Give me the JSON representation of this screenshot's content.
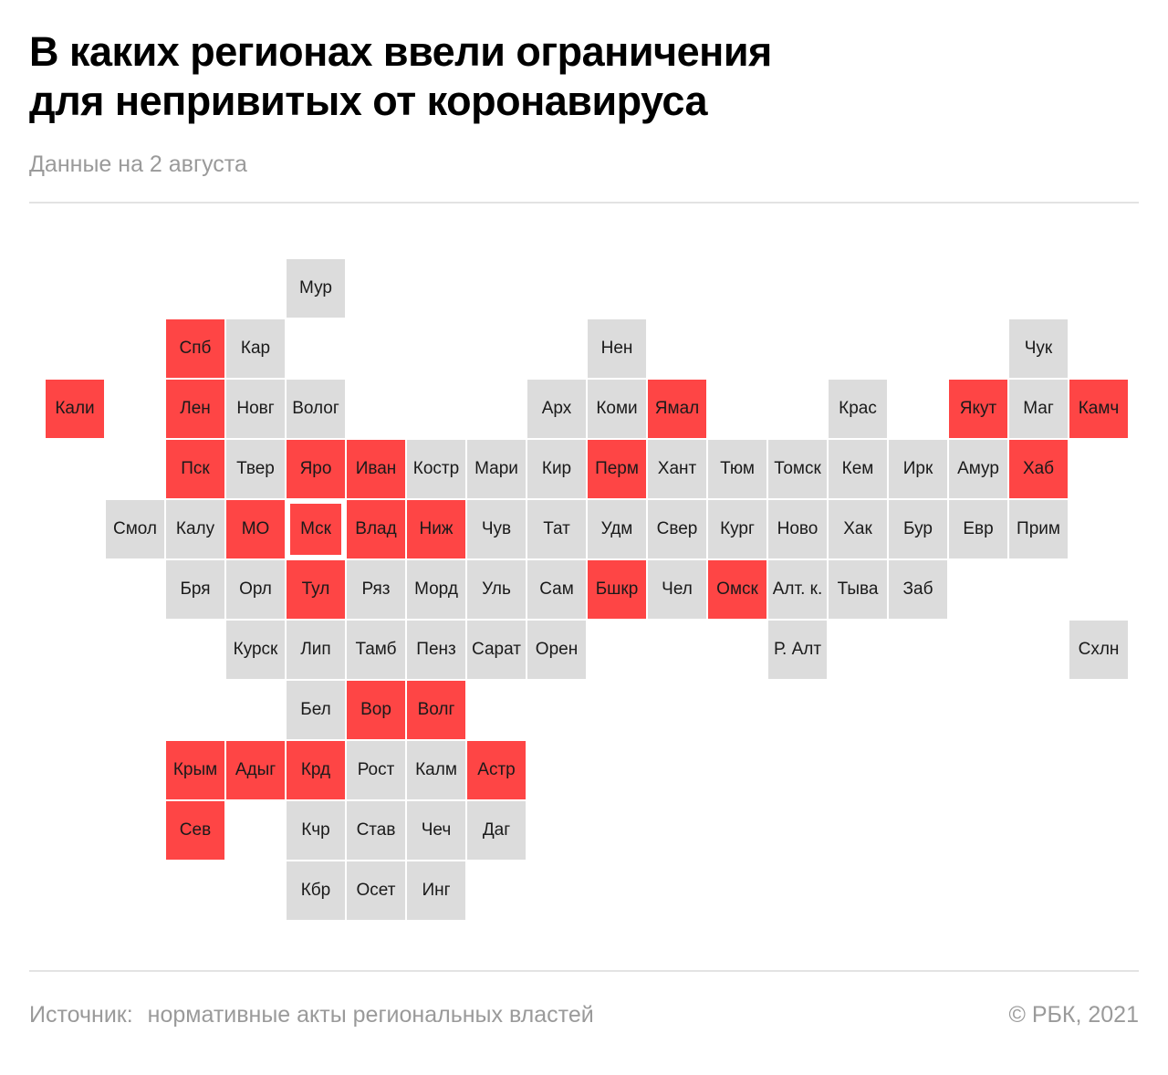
{
  "header": {
    "title_line1": "В каких регионах ввели ограничения",
    "title_line2": "для непривитых от коронавируса",
    "subtitle": "Данные на 2 августа"
  },
  "footer": {
    "source_label": "Источник:",
    "source_text": "нормативные акты региональных властей",
    "copyright": "©  РБК, 2021"
  },
  "colors": {
    "restricted": "#fe4545",
    "not_restricted": "#dcdcdc"
  },
  "chart_data": {
    "type": "heatmap",
    "cells": [
      {
        "label": "Мур",
        "col": 4,
        "row": 0,
        "restricted": false
      },
      {
        "label": "Спб",
        "col": 2,
        "row": 1,
        "restricted": true
      },
      {
        "label": "Кар",
        "col": 3,
        "row": 1,
        "restricted": false
      },
      {
        "label": "Нен",
        "col": 9,
        "row": 1,
        "restricted": false
      },
      {
        "label": "Чук",
        "col": 16,
        "row": 1,
        "restricted": false
      },
      {
        "label": "Кали",
        "col": 0,
        "row": 2,
        "restricted": true
      },
      {
        "label": "Лен",
        "col": 2,
        "row": 2,
        "restricted": true
      },
      {
        "label": "Новг",
        "col": 3,
        "row": 2,
        "restricted": false
      },
      {
        "label": "Волог",
        "col": 4,
        "row": 2,
        "restricted": false
      },
      {
        "label": "Арх",
        "col": 8,
        "row": 2,
        "restricted": false
      },
      {
        "label": "Коми",
        "col": 9,
        "row": 2,
        "restricted": false
      },
      {
        "label": "Ямал",
        "col": 10,
        "row": 2,
        "restricted": true
      },
      {
        "label": "Крас",
        "col": 13,
        "row": 2,
        "restricted": false
      },
      {
        "label": "Якут",
        "col": 15,
        "row": 2,
        "restricted": true
      },
      {
        "label": "Маг",
        "col": 16,
        "row": 2,
        "restricted": false
      },
      {
        "label": "Камч",
        "col": 17,
        "row": 2,
        "restricted": true
      },
      {
        "label": "Пск",
        "col": 2,
        "row": 3,
        "restricted": true
      },
      {
        "label": "Твер",
        "col": 3,
        "row": 3,
        "restricted": false
      },
      {
        "label": "Яро",
        "col": 4,
        "row": 3,
        "restricted": true
      },
      {
        "label": "Иван",
        "col": 5,
        "row": 3,
        "restricted": true
      },
      {
        "label": "Костр",
        "col": 6,
        "row": 3,
        "restricted": false
      },
      {
        "label": "Мари",
        "col": 7,
        "row": 3,
        "restricted": false
      },
      {
        "label": "Кир",
        "col": 8,
        "row": 3,
        "restricted": false
      },
      {
        "label": "Перм",
        "col": 9,
        "row": 3,
        "restricted": true
      },
      {
        "label": "Хант",
        "col": 10,
        "row": 3,
        "restricted": false
      },
      {
        "label": "Тюм",
        "col": 11,
        "row": 3,
        "restricted": false
      },
      {
        "label": "Томск",
        "col": 12,
        "row": 3,
        "restricted": false
      },
      {
        "label": "Кем",
        "col": 13,
        "row": 3,
        "restricted": false
      },
      {
        "label": "Ирк",
        "col": 14,
        "row": 3,
        "restricted": false
      },
      {
        "label": "Амур",
        "col": 15,
        "row": 3,
        "restricted": false
      },
      {
        "label": "Хаб",
        "col": 16,
        "row": 3,
        "restricted": true
      },
      {
        "label": "Смол",
        "col": 1,
        "row": 4,
        "restricted": false
      },
      {
        "label": "Калу",
        "col": 2,
        "row": 4,
        "restricted": false
      },
      {
        "label": "МО",
        "col": 3,
        "row": 4,
        "restricted": true
      },
      {
        "label": "Мск",
        "col": 4,
        "row": 4,
        "restricted": true,
        "highlight": true
      },
      {
        "label": "Влад",
        "col": 5,
        "row": 4,
        "restricted": true
      },
      {
        "label": "Ниж",
        "col": 6,
        "row": 4,
        "restricted": true
      },
      {
        "label": "Чув",
        "col": 7,
        "row": 4,
        "restricted": false
      },
      {
        "label": "Тат",
        "col": 8,
        "row": 4,
        "restricted": false
      },
      {
        "label": "Удм",
        "col": 9,
        "row": 4,
        "restricted": false
      },
      {
        "label": "Свер",
        "col": 10,
        "row": 4,
        "restricted": false
      },
      {
        "label": "Кург",
        "col": 11,
        "row": 4,
        "restricted": false
      },
      {
        "label": "Ново",
        "col": 12,
        "row": 4,
        "restricted": false
      },
      {
        "label": "Хак",
        "col": 13,
        "row": 4,
        "restricted": false
      },
      {
        "label": "Бур",
        "col": 14,
        "row": 4,
        "restricted": false
      },
      {
        "label": "Евр",
        "col": 15,
        "row": 4,
        "restricted": false
      },
      {
        "label": "Прим",
        "col": 16,
        "row": 4,
        "restricted": false
      },
      {
        "label": "Бря",
        "col": 2,
        "row": 5,
        "restricted": false
      },
      {
        "label": "Орл",
        "col": 3,
        "row": 5,
        "restricted": false
      },
      {
        "label": "Тул",
        "col": 4,
        "row": 5,
        "restricted": true
      },
      {
        "label": "Ряз",
        "col": 5,
        "row": 5,
        "restricted": false
      },
      {
        "label": "Морд",
        "col": 6,
        "row": 5,
        "restricted": false
      },
      {
        "label": "Уль",
        "col": 7,
        "row": 5,
        "restricted": false
      },
      {
        "label": "Сам",
        "col": 8,
        "row": 5,
        "restricted": false
      },
      {
        "label": "Бшкр",
        "col": 9,
        "row": 5,
        "restricted": true
      },
      {
        "label": "Чел",
        "col": 10,
        "row": 5,
        "restricted": false
      },
      {
        "label": "Омск",
        "col": 11,
        "row": 5,
        "restricted": true
      },
      {
        "label": "Алт. к.",
        "col": 12,
        "row": 5,
        "restricted": false
      },
      {
        "label": "Тыва",
        "col": 13,
        "row": 5,
        "restricted": false
      },
      {
        "label": "Заб",
        "col": 14,
        "row": 5,
        "restricted": false
      },
      {
        "label": "Курск",
        "col": 3,
        "row": 6,
        "restricted": false
      },
      {
        "label": "Лип",
        "col": 4,
        "row": 6,
        "restricted": false
      },
      {
        "label": "Тамб",
        "col": 5,
        "row": 6,
        "restricted": false
      },
      {
        "label": "Пенз",
        "col": 6,
        "row": 6,
        "restricted": false
      },
      {
        "label": "Сарат",
        "col": 7,
        "row": 6,
        "restricted": false
      },
      {
        "label": "Орен",
        "col": 8,
        "row": 6,
        "restricted": false
      },
      {
        "label": "Р. Алт",
        "col": 12,
        "row": 6,
        "restricted": false
      },
      {
        "label": "Схлн",
        "col": 17,
        "row": 6,
        "restricted": false
      },
      {
        "label": "Бел",
        "col": 4,
        "row": 7,
        "restricted": false
      },
      {
        "label": "Вор",
        "col": 5,
        "row": 7,
        "restricted": true
      },
      {
        "label": "Волг",
        "col": 6,
        "row": 7,
        "restricted": true
      },
      {
        "label": "Крым",
        "col": 2,
        "row": 8,
        "restricted": true
      },
      {
        "label": "Адыг",
        "col": 3,
        "row": 8,
        "restricted": true
      },
      {
        "label": "Крд",
        "col": 4,
        "row": 8,
        "restricted": true
      },
      {
        "label": "Рост",
        "col": 5,
        "row": 8,
        "restricted": false
      },
      {
        "label": "Калм",
        "col": 6,
        "row": 8,
        "restricted": false
      },
      {
        "label": "Астр",
        "col": 7,
        "row": 8,
        "restricted": true
      },
      {
        "label": "Сев",
        "col": 2,
        "row": 9,
        "restricted": true
      },
      {
        "label": "Кчр",
        "col": 4,
        "row": 9,
        "restricted": false
      },
      {
        "label": "Став",
        "col": 5,
        "row": 9,
        "restricted": false
      },
      {
        "label": "Чеч",
        "col": 6,
        "row": 9,
        "restricted": false
      },
      {
        "label": "Даг",
        "col": 7,
        "row": 9,
        "restricted": false
      },
      {
        "label": "Кбр",
        "col": 4,
        "row": 10,
        "restricted": false
      },
      {
        "label": "Осет",
        "col": 5,
        "row": 10,
        "restricted": false
      },
      {
        "label": "Инг",
        "col": 6,
        "row": 10,
        "restricted": false
      }
    ]
  }
}
